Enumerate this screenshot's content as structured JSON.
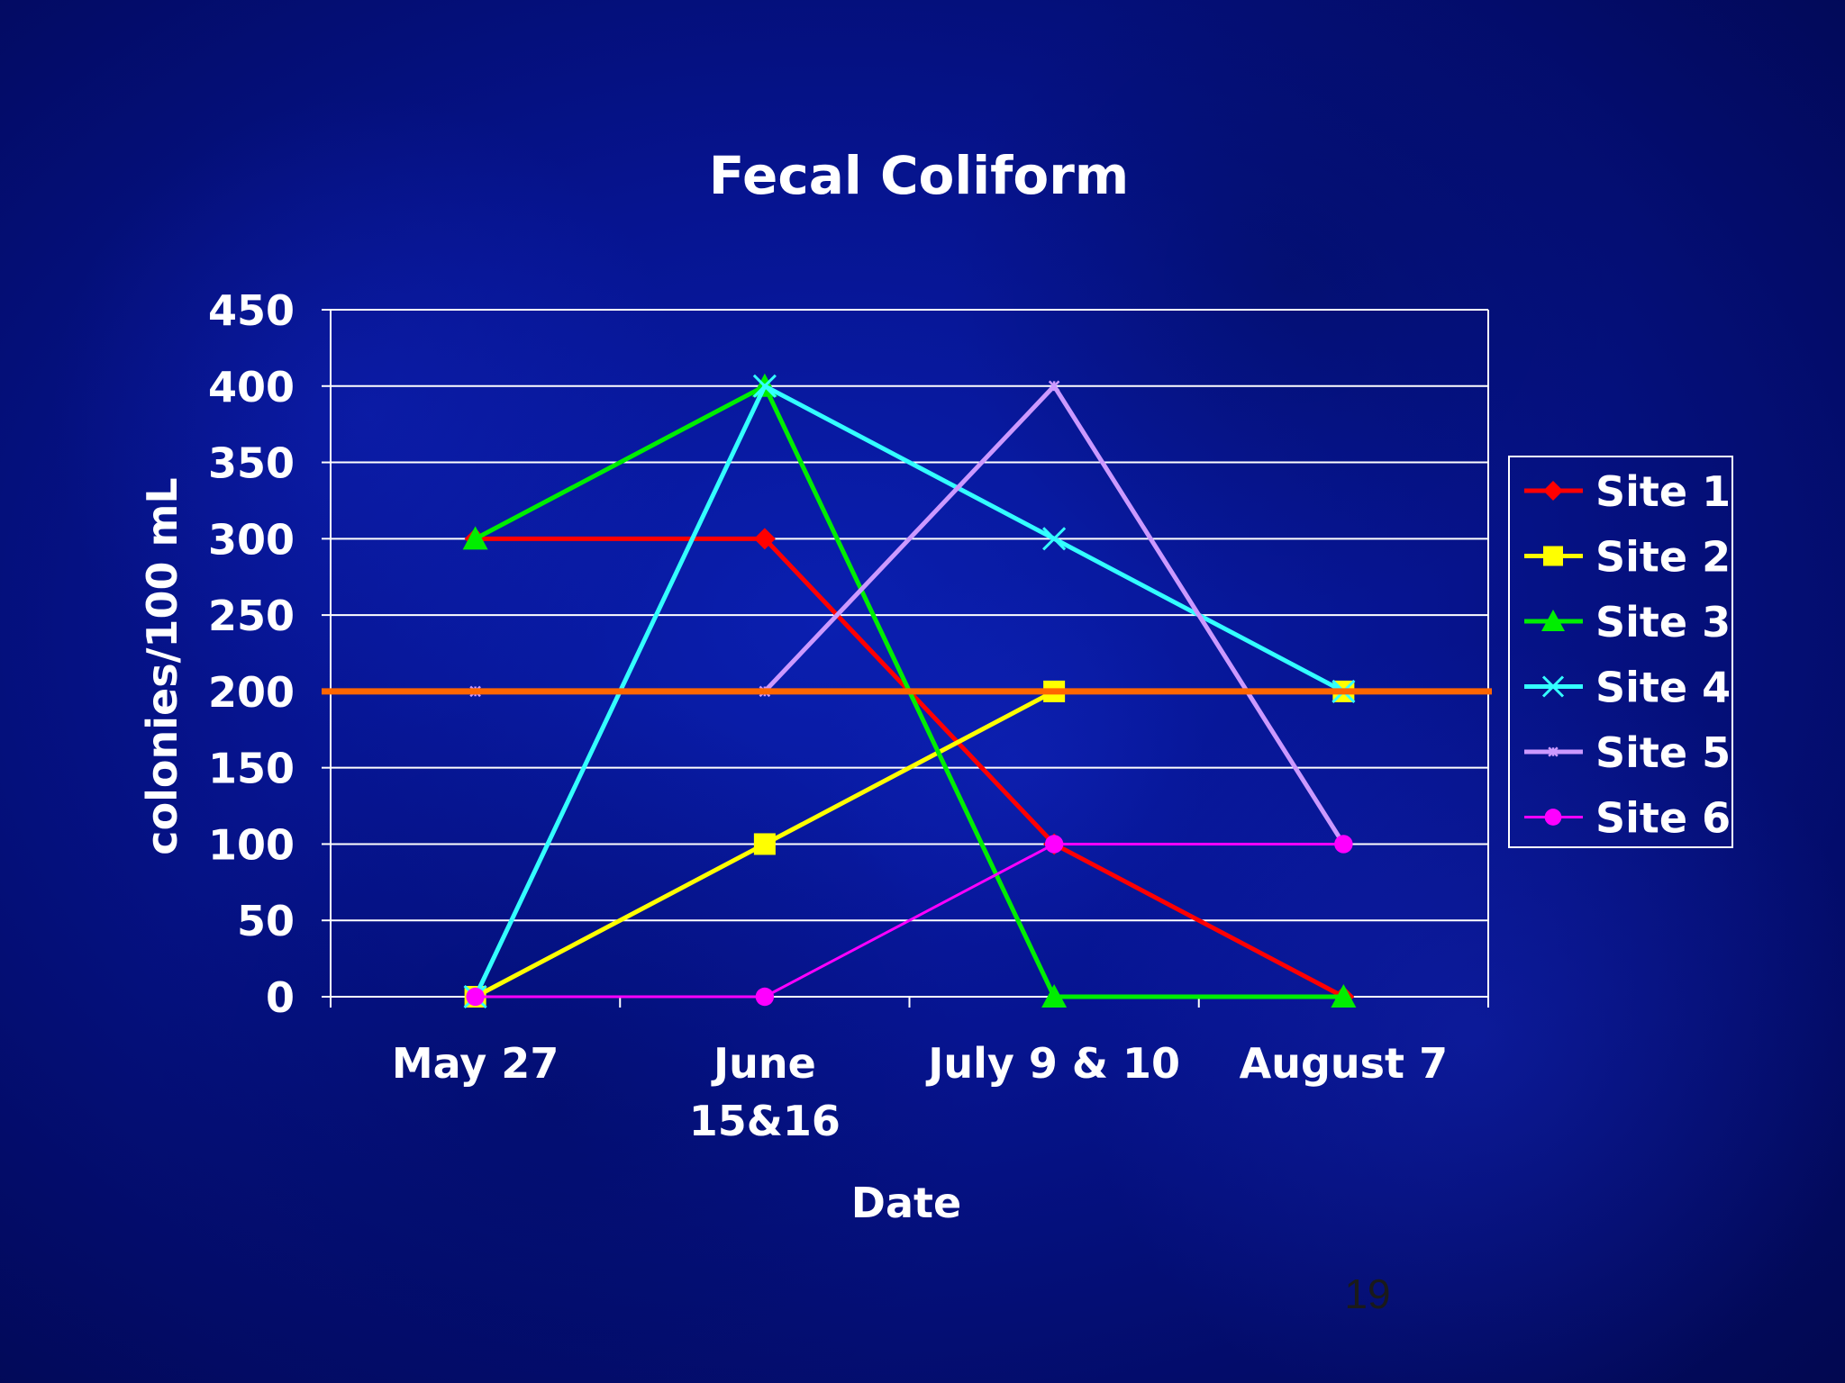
{
  "slide_number": "19",
  "chart_data": {
    "type": "line",
    "title": "Fecal Coliform",
    "xlabel": "Date",
    "ylabel": "colonies/100 mL",
    "categories": [
      "May 27",
      "June 15&16",
      "July 9 & 10",
      "August 7"
    ],
    "category_lines": [
      [
        "May 27"
      ],
      [
        "June",
        "15&16"
      ],
      [
        "July 9 & 10"
      ],
      [
        "August 7"
      ]
    ],
    "ylim": [
      0,
      450
    ],
    "yticks": [
      0,
      50,
      100,
      150,
      200,
      250,
      300,
      350,
      400,
      450
    ],
    "grid": true,
    "legend_position": "right",
    "series": [
      {
        "name": "Site 1",
        "color": "#ff0000",
        "marker": "diamond",
        "values": [
          300,
          300,
          100,
          0
        ]
      },
      {
        "name": "Site 2",
        "color": "#ffff00",
        "marker": "square",
        "values": [
          0,
          100,
          200,
          200
        ]
      },
      {
        "name": "Site 3",
        "color": "#00ee00",
        "marker": "triangle",
        "values": [
          300,
          400,
          0,
          0
        ]
      },
      {
        "name": "Site 4",
        "color": "#33ffff",
        "marker": "x",
        "values": [
          0,
          400,
          300,
          200
        ]
      },
      {
        "name": "Site 5",
        "color": "#cc99ff",
        "marker": "star",
        "values": [
          200,
          200,
          400,
          100
        ]
      },
      {
        "name": "Site 6",
        "color": "#ff00ff",
        "marker": "circle",
        "values": [
          0,
          0,
          100,
          100
        ]
      }
    ],
    "reference_line": {
      "value": 200,
      "color": "#ff6600"
    }
  }
}
